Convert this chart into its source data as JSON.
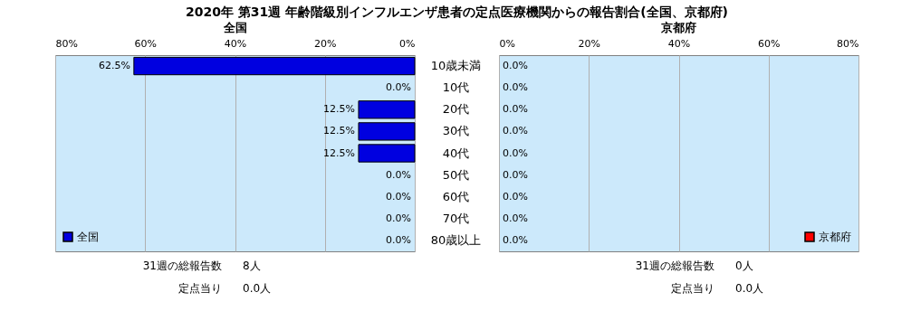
{
  "chart_data": [
    {
      "type": "bar",
      "orientation": "horizontal",
      "title": "2020年 第31週 年齢階級別インフルエンザ患者の定点医療機関からの報告割合(全国、京都府)",
      "subtitle": "全国",
      "categories": [
        "10歳未満",
        "10代",
        "20代",
        "30代",
        "40代",
        "50代",
        "60代",
        "70代",
        "80歳以上"
      ],
      "series": [
        {
          "name": "全国",
          "color": "#0000e0",
          "values": [
            62.5,
            0,
            12.5,
            12.5,
            12.5,
            0,
            0,
            0,
            0
          ],
          "value_labels": [
            "62.5%",
            "0.0%",
            "12.5%",
            "12.5%",
            "12.5%",
            "0.0%",
            "0.0%",
            "0.0%",
            "0.0%"
          ]
        }
      ],
      "xlim": [
        80,
        0
      ],
      "xticks": [
        {
          "value": 80,
          "label": "80%"
        },
        {
          "value": 60,
          "label": "60%"
        },
        {
          "value": 40,
          "label": "40%"
        },
        {
          "value": 20,
          "label": "20%"
        },
        {
          "value": 0,
          "label": "0%"
        }
      ],
      "grid": "x",
      "legend": "bottom left",
      "annotations": [
        "31週の総報告数",
        "8人",
        "定点当り",
        "0.0人"
      ]
    },
    {
      "type": "bar",
      "orientation": "horizontal",
      "subtitle": "京都府",
      "series": [
        {
          "name": "京都府",
          "color": "#ff0000",
          "values": [
            0,
            0,
            0,
            0,
            0,
            0,
            0,
            0,
            0
          ],
          "value_labels": [
            "0.0%",
            "0.0%",
            "0.0%",
            "0.0%",
            "0.0%",
            "0.0%",
            "0.0%",
            "0.0%",
            "0.0%"
          ]
        }
      ],
      "xlim": [
        0,
        80
      ],
      "xticks": [
        {
          "value": 0,
          "label": "0%"
        },
        {
          "value": 20,
          "label": "20%"
        },
        {
          "value": 40,
          "label": "40%"
        },
        {
          "value": 60,
          "label": "60%"
        },
        {
          "value": 80,
          "label": "80%"
        }
      ],
      "grid": "x",
      "legend": "bottom right",
      "tick_labels": "x",
      "annotations": [
        "31週の総報告数",
        "0人",
        "定点当り",
        "0.0人"
      ]
    }
  ]
}
